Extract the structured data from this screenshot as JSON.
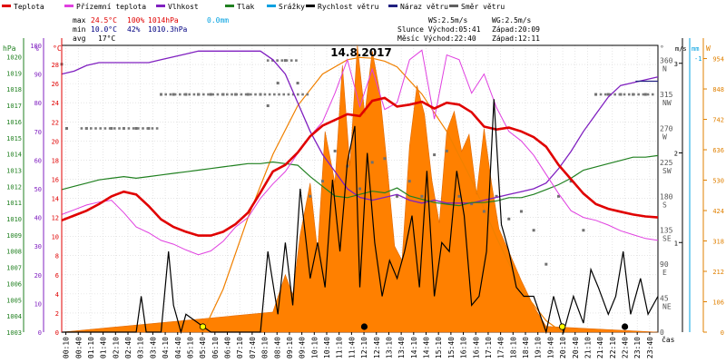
{
  "chart_data": {
    "type": "line",
    "title": "14.8.2017",
    "legend": [
      {
        "name": "Teplota",
        "color": "#e00000"
      },
      {
        "name": "Přízemní teplota",
        "color": "#e040e0"
      },
      {
        "name": "Vlhkost",
        "color": "#8020c0"
      },
      {
        "name": "Tlak",
        "color": "#208020"
      },
      {
        "name": "Srážky",
        "color": "#00a0e0"
      },
      {
        "name": "Rychlost větru",
        "color": "#000000"
      },
      {
        "name": "Náraz větru",
        "color": "#202080"
      },
      {
        "name": "Směr větru",
        "color": "#606060"
      }
    ],
    "stats": {
      "max_label": "max",
      "max_temp": "24.5°C",
      "max_hum": "100%",
      "max_press": "1014hPa",
      "max_rain": "0.0mm",
      "min_label": "min",
      "min_temp": "10.0°C",
      "min_hum": "42%",
      "min_press": "1010.3hPa",
      "avg_label": "avg",
      "avg_temp": "17°C"
    },
    "info": {
      "ws": "WS:2.5m/s",
      "wg": "WG:2.5m/s",
      "sun_rise": "Slunce Východ:05:41",
      "sun_set": "Západ:20:09",
      "moon_rise": "Měsíc Východ:22:40",
      "moon_set": "Západ:12:11"
    },
    "axes": {
      "hpa_label": "hPa",
      "pct_label": "%",
      "c_label": "°C",
      "deg_label": "°",
      "ms_label": "m/s",
      "mm_label": "mm",
      "w_label": "W",
      "x_label": "čas",
      "hpa_ticks": [
        "1020",
        "1019",
        "1018",
        "1017",
        "1016",
        "1015",
        "1014",
        "1013",
        "1012",
        "1011",
        "1010",
        "1009",
        "1008",
        "1007",
        "1006",
        "1005",
        "1004",
        "1003"
      ],
      "pct_ticks": [
        "100",
        "90",
        "80",
        "70",
        "60",
        "50",
        "40",
        "30",
        "20",
        "10",
        "0"
      ],
      "c_ticks": [
        "28",
        "26",
        "24",
        "22",
        "20",
        "18",
        "16",
        "14",
        "12",
        "10",
        "8",
        "6",
        "4",
        "2",
        "0"
      ],
      "dir_ticks": [
        "360 N",
        "315 NW",
        "270 W",
        "225 SW",
        "180 S",
        "135 SE",
        "90 E",
        "45 NE",
        "0"
      ],
      "ms_ticks": [
        "3",
        "2",
        "1"
      ],
      "w_ticks": [
        "954",
        "848",
        "742",
        "636",
        "530",
        "424",
        "318",
        "212",
        "106",
        "0"
      ],
      "x_ticks": [
        "00:10",
        "00:40",
        "01:10",
        "01:40",
        "02:10",
        "02:40",
        "03:10",
        "03:40",
        "04:10",
        "04:40",
        "05:10",
        "05:40",
        "06:10",
        "06:40",
        "07:10",
        "07:40",
        "08:10",
        "08:40",
        "09:10",
        "09:40",
        "10:10",
        "10:40",
        "11:10",
        "11:40",
        "12:10",
        "12:40",
        "13:10",
        "13:40",
        "14:10",
        "14:40",
        "15:10",
        "15:40",
        "16:10",
        "16:40",
        "17:10",
        "17:40",
        "18:10",
        "18:40",
        "19:10",
        "19:40",
        "20:10",
        "20:40",
        "21:10",
        "21:40",
        "22:10",
        "22:40",
        "23:10",
        "23:40"
      ],
      "temp_range": [
        0,
        30
      ],
      "hum_range": [
        0,
        100
      ],
      "press_range": [
        1003,
        1020.7
      ],
      "dir_range": [
        0,
        380
      ],
      "wind_range": [
        0,
        3.2
      ],
      "rad_range": [
        0,
        1000
      ],
      "x_range": [
        0,
        24
      ]
    },
    "series": [
      {
        "name": "Teplota",
        "x": [
          0,
          0.5,
          1,
          1.5,
          2,
          2.5,
          3,
          3.5,
          4,
          4.5,
          5,
          5.5,
          6,
          6.5,
          7,
          7.5,
          8,
          8.5,
          9,
          9.5,
          10,
          10.5,
          11,
          11.5,
          12,
          12.5,
          13,
          13.5,
          14,
          14.5,
          15,
          15.5,
          16,
          16.5,
          17,
          17.5,
          18,
          18.5,
          19,
          19.5,
          20,
          20.5,
          21,
          21.5,
          22,
          22.5,
          23,
          23.5,
          24
        ],
        "values": [
          11.7,
          12.2,
          12.7,
          13.4,
          14.2,
          14.7,
          14.4,
          13.2,
          11.8,
          11.0,
          10.5,
          10.1,
          10.1,
          10.5,
          11.3,
          12.5,
          14.6,
          16.8,
          17.5,
          18.8,
          20.5,
          21.6,
          22.2,
          22.8,
          22.6,
          24.2,
          24.5,
          23.6,
          23.8,
          24.1,
          23.4,
          24.0,
          23.8,
          23.0,
          21.5,
          21.2,
          21.4,
          21.0,
          20.4,
          19.4,
          17.5,
          16.0,
          14.5,
          13.4,
          12.9,
          12.6,
          12.3,
          12.1,
          12.0
        ]
      },
      {
        "name": "Přízemní teplota",
        "x": [
          0,
          0.5,
          1,
          1.5,
          2,
          2.5,
          3,
          3.5,
          4,
          4.5,
          5,
          5.5,
          6,
          6.5,
          7,
          7.5,
          8,
          8.5,
          9,
          9.5,
          10,
          10.5,
          11,
          11.5,
          12,
          12.5,
          13,
          13.5,
          14,
          14.5,
          15,
          15.5,
          16,
          16.5,
          17,
          17.5,
          18,
          18.5,
          19,
          19.5,
          20,
          20.5,
          21,
          21.5,
          22,
          22.5,
          23,
          23.5,
          24
        ],
        "values": [
          12.3,
          12.8,
          13.3,
          13.6,
          13.8,
          12.5,
          11.0,
          10.4,
          9.6,
          9.2,
          8.6,
          8.1,
          8.5,
          9.5,
          11.0,
          12.0,
          14.0,
          15.5,
          16.8,
          18.7,
          20.5,
          22.0,
          25.0,
          28.5,
          23.6,
          27.5,
          23.3,
          24.0,
          28.5,
          29.5,
          22.3,
          29.0,
          28.5,
          25.0,
          27.0,
          23.5,
          21.0,
          20.0,
          18.5,
          16.5,
          14.5,
          12.7,
          12.0,
          11.7,
          11.2,
          10.6,
          10.2,
          9.8,
          9.6
        ]
      },
      {
        "name": "Vlhkost",
        "x": [
          0,
          0.5,
          1,
          1.5,
          2,
          2.5,
          3,
          3.5,
          4,
          4.5,
          5,
          5.5,
          6,
          6.5,
          7,
          7.5,
          8,
          8.5,
          9,
          9.5,
          10,
          10.5,
          11,
          11.5,
          12,
          12.5,
          13,
          13.5,
          14,
          14.5,
          15,
          15.5,
          16,
          16.5,
          17,
          17.5,
          18,
          18.5,
          19,
          19.5,
          20,
          20.5,
          21,
          21.5,
          22,
          22.5,
          23,
          23.5,
          24
        ],
        "values": [
          90,
          91,
          93,
          94,
          94,
          94,
          94,
          94,
          95,
          96,
          97,
          98,
          98,
          98,
          98,
          98,
          98,
          95,
          90,
          80,
          70,
          62,
          56,
          50,
          47,
          46,
          47,
          48,
          46,
          45,
          46,
          45,
          45,
          45,
          46,
          47,
          48,
          49,
          50,
          52,
          57,
          63,
          70,
          76,
          82,
          86,
          87,
          88,
          89
        ]
      },
      {
        "name": "Tlak",
        "x": [
          0,
          0.5,
          1,
          1.5,
          2,
          2.5,
          3,
          3.5,
          4,
          4.5,
          5,
          5.5,
          6,
          6.5,
          7,
          7.5,
          8,
          8.5,
          9,
          9.5,
          10,
          10.5,
          11,
          11.5,
          12,
          12.5,
          13,
          13.5,
          14,
          14.5,
          15,
          15.5,
          16,
          16.5,
          17,
          17.5,
          18,
          18.5,
          19,
          19.5,
          20,
          20.5,
          21,
          21.5,
          22,
          22.5,
          23,
          23.5,
          24
        ],
        "values": [
          1011.8,
          1012.0,
          1012.2,
          1012.4,
          1012.5,
          1012.6,
          1012.5,
          1012.6,
          1012.7,
          1012.8,
          1012.9,
          1013.0,
          1013.1,
          1013.2,
          1013.3,
          1013.4,
          1013.4,
          1013.5,
          1013.4,
          1013.3,
          1012.6,
          1012.0,
          1011.4,
          1011.3,
          1011.5,
          1011.7,
          1011.6,
          1011.9,
          1011.4,
          1011.2,
          1011.0,
          1010.9,
          1010.8,
          1011.0,
          1011.0,
          1011.1,
          1011.3,
          1011.3,
          1011.5,
          1011.8,
          1012.1,
          1012.5,
          1013.0,
          1013.2,
          1013.4,
          1013.6,
          1013.8,
          1013.8,
          1013.9
        ]
      },
      {
        "name": "Rychlost větru",
        "x": [
          0,
          3,
          3.2,
          3.4,
          4,
          4.3,
          4.5,
          4.8,
          5,
          6,
          8,
          8.3,
          8.7,
          9,
          9.3,
          9.6,
          10,
          10.3,
          10.6,
          10.9,
          11.2,
          11.5,
          11.8,
          12,
          12.3,
          12.6,
          12.9,
          13.2,
          13.5,
          13.8,
          14.1,
          14.4,
          14.7,
          15,
          15.3,
          15.6,
          15.9,
          16.2,
          16.5,
          16.8,
          17.1,
          17.4,
          17.7,
          18,
          18.3,
          18.6,
          19,
          19.5,
          19.8,
          20.2,
          20.6,
          21,
          21.3,
          21.6,
          22,
          22.3,
          22.6,
          22.9,
          23.3,
          23.6,
          24
        ],
        "values": [
          0,
          0,
          0.4,
          0,
          0,
          0.9,
          0.3,
          0,
          0.2,
          0,
          0,
          0.9,
          0.2,
          1.0,
          0.3,
          1.6,
          0.6,
          1.0,
          0.5,
          1.7,
          0.9,
          1.9,
          2.3,
          0.5,
          2.0,
          1.0,
          0.4,
          0.8,
          0.6,
          0.9,
          1.3,
          0.5,
          1.8,
          0.4,
          1.0,
          0.9,
          1.8,
          1.3,
          0.3,
          0.4,
          0.9,
          2.6,
          1.2,
          0.9,
          0.5,
          0.4,
          0.4,
          0.0,
          0.4,
          0.0,
          0.4,
          0.1,
          0.7,
          0.5,
          0.2,
          0.4,
          0.9,
          0.2,
          0.6,
          0.2,
          0.4
        ]
      },
      {
        "name": "Náraz větru",
        "x": [
          23.1,
          24
        ],
        "values": [
          2.8,
          2.8
        ]
      },
      {
        "name": "Směr větru",
        "x": [
          0,
          0.2,
          1,
          2,
          2.5,
          3,
          3.5,
          4,
          4.5,
          5,
          5.5,
          6,
          6.5,
          7,
          7.5,
          8,
          8.3,
          8.7,
          9,
          9.5,
          10,
          10.5,
          11,
          11.5,
          12,
          12.5,
          13,
          13.5,
          14,
          14.5,
          15,
          15.5,
          16,
          16.5,
          17,
          17.5,
          18,
          18.5,
          19,
          19.5,
          20,
          20.5,
          21,
          21.5,
          22,
          22.5,
          23,
          23.5
        ],
        "values": [
          355,
          270,
          270,
          270,
          270,
          270,
          270,
          315,
          315,
          315,
          315,
          315,
          315,
          315,
          315,
          315,
          300,
          330,
          360,
          330,
          180,
          200,
          240,
          220,
          190,
          225,
          230,
          180,
          200,
          180,
          235,
          240,
          180,
          170,
          160,
          180,
          150,
          160,
          135,
          90,
          180,
          200,
          135,
          315,
          315,
          315,
          315,
          315
        ]
      },
      {
        "name": "Sluneční záření",
        "x": [
          0,
          8.5,
          9,
          9.3,
          9.6,
          10,
          10.3,
          10.6,
          11,
          11.3,
          11.6,
          11.9,
          12.2,
          12.5,
          12.8,
          13.1,
          13.4,
          13.7,
          14,
          14.3,
          14.6,
          14.9,
          15.2,
          15.5,
          15.8,
          16.1,
          16.4,
          16.7,
          17,
          17.3,
          17.6,
          18,
          18.5,
          19,
          19.5,
          24
        ],
        "values": [
          0,
          70,
          200,
          130,
          340,
          520,
          280,
          700,
          520,
          930,
          580,
          1000,
          760,
          980,
          840,
          580,
          300,
          250,
          650,
          860,
          760,
          530,
          380,
          700,
          770,
          630,
          690,
          480,
          710,
          520,
          360,
          280,
          180,
          90,
          20,
          0
        ]
      },
      {
        "name": "Teoretické záření",
        "x": [
          5.68,
          6.5,
          7.5,
          8.5,
          9.5,
          10.5,
          11.5,
          12,
          12.5,
          13,
          13.5,
          14.5,
          15.5,
          16.5,
          17.5,
          18.5,
          19.5,
          20.15
        ],
        "values": [
          0,
          150,
          400,
          620,
          790,
          900,
          950,
          958,
          955,
          945,
          925,
          830,
          700,
          530,
          330,
          150,
          40,
          0
        ]
      }
    ]
  }
}
